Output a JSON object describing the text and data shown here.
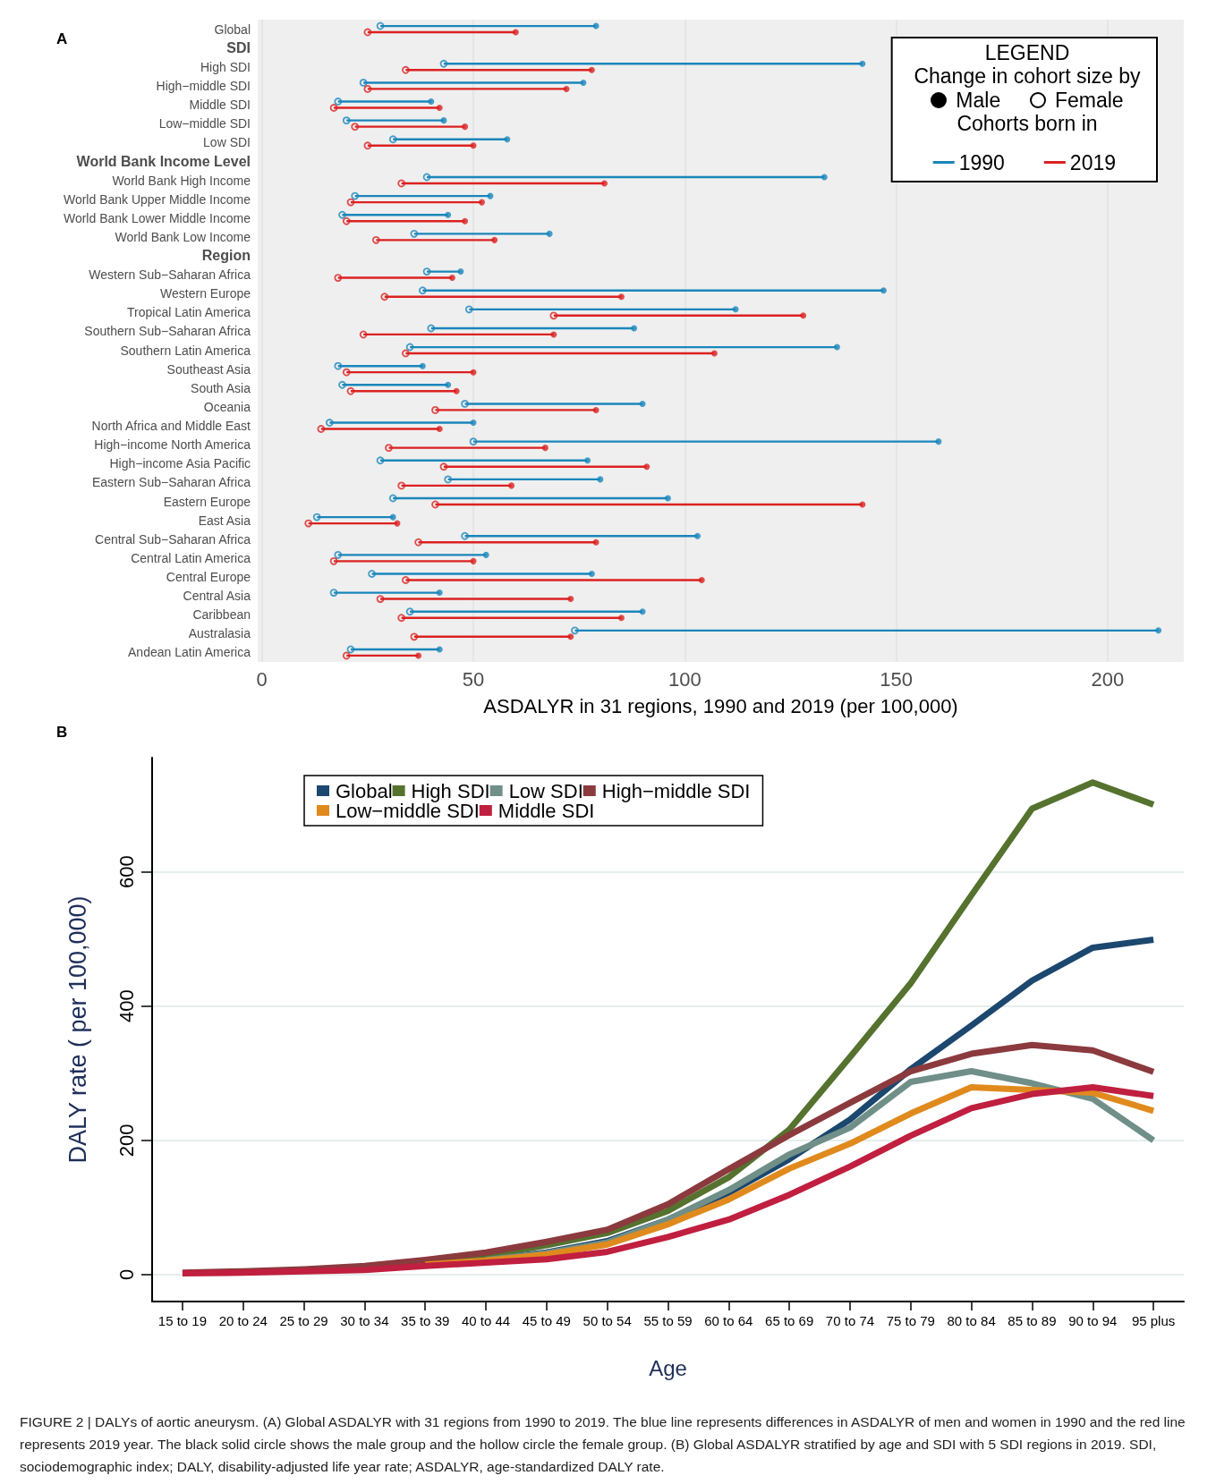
{
  "chart_data": [
    {
      "type": "bar",
      "orientation": "horizontal",
      "title": "A",
      "xlabel": "ASDALYR in 31 regions, 1990 and 2019 (per 100,000)",
      "legend_title": "LEGEND",
      "legend": "top right",
      "grid": "x",
      "annotations": [
        "Change in cohort size by",
        "Male",
        "Female",
        "Cohorts born in"
      ],
      "categories": [
        "Global",
        "SDI",
        "High SDI",
        "High−middle SDI",
        "Middle SDI",
        "Low−middle SDI",
        "Low SDI",
        "World Bank Income Level",
        "World Bank High Income",
        "World Bank Upper Middle Income",
        "World Bank Lower Middle Income",
        "World Bank Low Income",
        "Region",
        "Western Sub−Saharan Africa",
        "Western Europe",
        "Tropical Latin America",
        "Southern Sub−Saharan Africa",
        "Southern Latin America",
        "Southeast Asia",
        "South Asia",
        "Oceania",
        "North Africa and Middle East",
        "High−income North America",
        "High−income Asia Pacific",
        "Eastern Sub−Saharan Africa",
        "Eastern Europe",
        "East Asia",
        "Central Sub−Saharan Africa",
        "Central Latin America",
        "Central Europe",
        "Central Asia",
        "Caribbean",
        "Australasia",
        "Andean Latin America"
      ],
      "xlim": [
        -1,
        218
      ],
      "xticks": [
        0,
        50,
        100,
        150,
        200
      ],
      "series": [
        {
          "name": "1990",
          "color": "#1a86bb",
          "base": [
            28,
            null,
            43,
            24,
            18,
            20,
            31,
            null,
            39,
            22,
            19,
            36,
            null,
            39,
            38,
            49,
            40,
            35,
            18,
            19,
            48,
            16,
            50,
            28,
            44,
            31,
            13,
            48,
            18,
            26,
            17,
            35,
            74,
            21
          ],
          "values": [
            51,
            null,
            99,
            52,
            22,
            23,
            27,
            null,
            94,
            32,
            25,
            32,
            null,
            8,
            109,
            63,
            48,
            101,
            20,
            25,
            42,
            34,
            110,
            49,
            36,
            65,
            18,
            55,
            35,
            52,
            25,
            55,
            138,
            21
          ]
        },
        {
          "type": "scatter",
          "color": "#1a86bb",
          "values": [
            28,
            null,
            43,
            24,
            18,
            20,
            31,
            null,
            39,
            22,
            19,
            36,
            null,
            39,
            38,
            49,
            40,
            35,
            18,
            19,
            48,
            16,
            50,
            28,
            44,
            31,
            13,
            48,
            18,
            26,
            17,
            35,
            74,
            21
          ]
        },
        {
          "type": "scatter",
          "color": "#1a86bb",
          "values": [
            79,
            null,
            142,
            76,
            40,
            43,
            58,
            null,
            133,
            54,
            44,
            68,
            null,
            47,
            147,
            112,
            88,
            136,
            38,
            44,
            90,
            50,
            160,
            77,
            80,
            96,
            31,
            103,
            53,
            78,
            42,
            90,
            212,
            42
          ]
        },
        {
          "name": "2019",
          "color": "#dc2121",
          "base": [
            25,
            null,
            34,
            25,
            17,
            22,
            25,
            null,
            33,
            21,
            20,
            27,
            null,
            18,
            29,
            69,
            24,
            34,
            20,
            21,
            41,
            14,
            30,
            43,
            33,
            41,
            11,
            37,
            17,
            34,
            28,
            33,
            36,
            20
          ],
          "values": [
            35,
            null,
            44,
            47,
            25,
            26,
            25,
            null,
            48,
            31,
            28,
            28,
            null,
            27,
            56,
            59,
            45,
            73,
            30,
            25,
            38,
            28,
            37,
            48,
            26,
            101,
            21,
            42,
            33,
            70,
            45,
            52,
            37,
            17
          ]
        },
        {
          "type": "scatter",
          "color": "#dc2121",
          "values": [
            25,
            null,
            34,
            25,
            17,
            22,
            25,
            null,
            33,
            21,
            20,
            27,
            null,
            18,
            29,
            69,
            24,
            34,
            20,
            21,
            41,
            14,
            30,
            43,
            33,
            41,
            11,
            37,
            17,
            34,
            28,
            33,
            36,
            20
          ]
        },
        {
          "type": "scatter",
          "color": "#dc2121",
          "values": [
            60,
            null,
            78,
            72,
            42,
            48,
            50,
            null,
            81,
            52,
            48,
            55,
            null,
            45,
            85,
            128,
            69,
            107,
            50,
            46,
            79,
            42,
            67,
            91,
            59,
            142,
            32,
            79,
            50,
            104,
            73,
            85,
            73,
            37
          ]
        }
      ]
    },
    {
      "type": "line",
      "title": "B",
      "xlabel": "Age",
      "ylabel": "DALY rate ( per 100,000)",
      "legend": "top",
      "grid": "y",
      "marker": "none",
      "line_style": "solid",
      "annotations": [
        "FIGURE 2 | DALYs of aortic aneurysm. (A) Global ASDALYR with 31 regions from 1990 to 2019. The blue line represents differences in ASDALYR of men and women in 1990 and the red line represents 2019 year. The black solid circle shows the male group and the hollow circle the female group. (B) Global ASDALYR stratified by age and SDI with 5 SDI regions in 2019. SDI, sociodemographic index; DALY, disability-adjusted life year rate; ASDALYR, age-standardized DALY rate."
      ],
      "categories": [
        "15 to 19",
        "20 to 24",
        "25 to 29",
        "30 to 34",
        "35 to 39",
        "40 to 44",
        "45 to 49",
        "50 to 54",
        "55 to 59",
        "60 to 64",
        "65 to 69",
        "70 to 74",
        "75 to 79",
        "80 to 84",
        "85 to 89",
        "90 to 94",
        "95 plus"
      ],
      "ylim": [
        -40,
        770
      ],
      "yticks": [
        0,
        200,
        400,
        600
      ],
      "series": [
        {
          "name": "Global",
          "color": "#1c476e",
          "values": [
            null,
            null,
            null,
            null,
            16,
            23,
            33,
            50,
            82,
            122,
            172,
            231,
            306,
            371,
            438,
            487,
            499
          ]
        },
        {
          "name": "High SDI",
          "color": "#55722f",
          "values": [
            null,
            null,
            null,
            null,
            19,
            29,
            44,
            62,
            95,
            145,
            216,
            324,
            434,
            565,
            694,
            733,
            700
          ]
        },
        {
          "name": "Low SDI",
          "color": "#6f8f88",
          "values": [
            null,
            null,
            null,
            null,
            null,
            22,
            32,
            48,
            82,
            126,
            179,
            219,
            287,
            303,
            285,
            262,
            200
          ]
        },
        {
          "name": "High−middle SDI",
          "color": "#8b3a3e",
          "values": [
            3,
            5,
            8,
            13,
            22,
            33,
            49,
            67,
            105,
            157,
            208,
            256,
            303,
            329,
            342,
            334,
            302
          ]
        },
        {
          "name": "Low−middle SDI",
          "color": "#e08a1e",
          "values": [
            null,
            null,
            null,
            null,
            15,
            21,
            30,
            45,
            75,
            112,
            158,
            195,
            240,
            279,
            275,
            271,
            244
          ]
        },
        {
          "name": "Middle SDI",
          "color": "#c01f3f",
          "values": [
            2,
            3,
            5,
            7,
            13,
            18,
            23,
            34,
            56,
            82,
            119,
            161,
            207,
            248,
            269,
            279,
            266
          ]
        }
      ]
    }
  ]
}
